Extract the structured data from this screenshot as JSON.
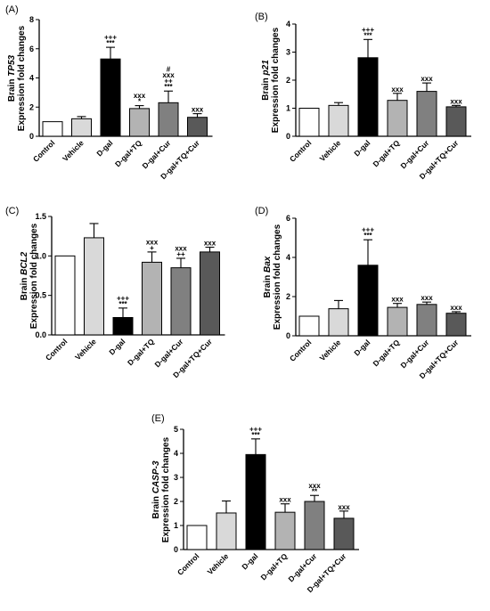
{
  "chart_data": [
    {
      "panel": "(A)",
      "type": "bar",
      "ylabel_prefix": "Brain ",
      "ylabel_gene": "TP53",
      "ylabel_line2": "Expression fold changes",
      "ylim": [
        0,
        8
      ],
      "yticks": [
        "0",
        "2",
        "4",
        "6",
        "8"
      ],
      "categories": [
        "Control",
        "Vehicle",
        "D-gal",
        "D-gal+TQ",
        "D-gal+Cur",
        "D-gal+TQ+Cur"
      ],
      "values": [
        1.0,
        1.2,
        5.3,
        1.9,
        2.3,
        1.3
      ],
      "errors": [
        0,
        0.15,
        0.8,
        0.2,
        0.8,
        0.25
      ],
      "annotations": [
        [],
        [],
        [
          "+++",
          "***"
        ],
        [
          "xxx",
          "*"
        ],
        [
          "#",
          "xxx",
          "++",
          "***"
        ],
        [
          "xxx"
        ]
      ]
    },
    {
      "panel": "(B)",
      "type": "bar",
      "ylabel_prefix": "Brain ",
      "ylabel_gene": "p21",
      "ylabel_line2": "Expression fold changes",
      "ylim": [
        0,
        4
      ],
      "yticks": [
        "0",
        "1",
        "2",
        "3",
        "4"
      ],
      "categories": [
        "Control",
        "Vehicle",
        "D-gal",
        "D-gal+TQ",
        "D-gal+Cur",
        "D-gal+TQ+Cur"
      ],
      "values": [
        1.0,
        1.1,
        2.8,
        1.28,
        1.6,
        1.05
      ],
      "errors": [
        0,
        0.1,
        0.65,
        0.25,
        0.3,
        0.05
      ],
      "annotations": [
        [],
        [],
        [
          "+++",
          "***"
        ],
        [
          "xxx"
        ],
        [
          "xxx"
        ],
        [
          "xxx"
        ]
      ]
    },
    {
      "panel": "(C)",
      "type": "bar",
      "ylabel_prefix": "Brain ",
      "ylabel_gene": "BCL2",
      "ylabel_line2": "Expression fold changes",
      "ylim": [
        0,
        1.5
      ],
      "yticks": [
        "0.0",
        "0.5",
        "1.0",
        "1.5"
      ],
      "categories": [
        "Control",
        "Vehicle",
        "D-gal",
        "D-gal+TQ",
        "D-gal+Cur",
        "D-gal+TQ+Cur"
      ],
      "values": [
        1.0,
        1.23,
        0.22,
        0.92,
        0.85,
        1.05
      ],
      "errors": [
        0,
        0.18,
        0.12,
        0.13,
        0.12,
        0.06
      ],
      "annotations": [
        [],
        [],
        [
          "+++",
          "***"
        ],
        [
          "xxx",
          "+"
        ],
        [
          "xxx",
          "++"
        ],
        [
          "xxx"
        ]
      ]
    },
    {
      "panel": "(D)",
      "type": "bar",
      "ylabel_prefix": "Brain ",
      "ylabel_gene": "Bax",
      "ylabel_line2": "Expression fold changes",
      "ylim": [
        0,
        6
      ],
      "yticks": [
        "0",
        "2",
        "4",
        "6"
      ],
      "categories": [
        "Control",
        "Vehicle",
        "D-gal",
        "D-gal+TQ",
        "D-gal+Cur",
        "D-gal+TQ+Cur"
      ],
      "values": [
        1.0,
        1.38,
        3.6,
        1.45,
        1.6,
        1.15
      ],
      "errors": [
        0,
        0.42,
        1.3,
        0.2,
        0.12,
        0.08
      ],
      "annotations": [
        [],
        [],
        [
          "+++",
          "***"
        ],
        [
          "xxx"
        ],
        [
          "xxx"
        ],
        [
          "xxx"
        ]
      ]
    },
    {
      "panel": "(E)",
      "type": "bar",
      "ylabel_prefix": "Brain ",
      "ylabel_gene": "CASP-3",
      "ylabel_line2": "Expression fold changes",
      "ylim": [
        0,
        5
      ],
      "yticks": [
        "0",
        "1",
        "2",
        "3",
        "4",
        "5"
      ],
      "categories": [
        "Control",
        "Vehicle",
        "D-gal",
        "D-gal+TQ",
        "D-gal+Cur",
        "D-gal+TQ+Cur"
      ],
      "values": [
        1.0,
        1.52,
        3.95,
        1.55,
        2.0,
        1.3
      ],
      "errors": [
        0,
        0.5,
        0.65,
        0.35,
        0.25,
        0.3
      ],
      "annotations": [
        [],
        [],
        [
          "+++",
          "***"
        ],
        [
          "xxx"
        ],
        [
          "xxx",
          "**"
        ],
        [
          "xxx"
        ]
      ]
    }
  ],
  "bar_fills": [
    "#ffffff",
    "#d9d9d9",
    "#000000",
    "#b3b3b3",
    "#808080",
    "#595959"
  ]
}
